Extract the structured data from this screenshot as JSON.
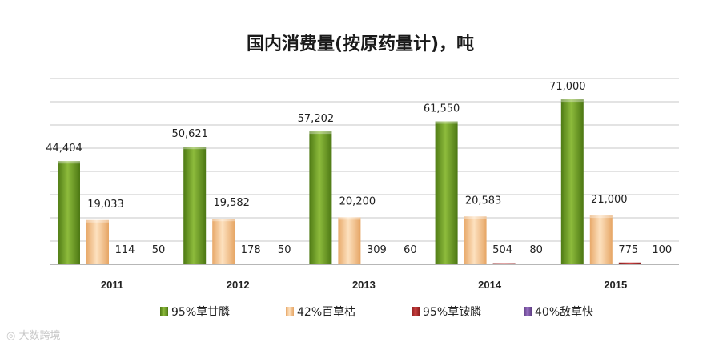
{
  "chart_data": {
    "type": "bar",
    "title": "国内消费量(按原药量计)，吨",
    "categories": [
      "2011",
      "2012",
      "2013",
      "2014",
      "2015"
    ],
    "series": [
      {
        "name": "95%草甘膦",
        "values": [
          44404,
          50621,
          57202,
          61550,
          71000
        ],
        "labels": [
          "44,404",
          "50,621",
          "57,202",
          "61,550",
          "71,000"
        ],
        "color": "#5f8f1f"
      },
      {
        "name": "42%百草枯",
        "values": [
          19033,
          19582,
          20200,
          20583,
          21000
        ],
        "labels": [
          "19,033",
          "19,582",
          "20,200",
          "20,583",
          "21,000"
        ],
        "color": "#f3c493"
      },
      {
        "name": "95%草铵膦",
        "values": [
          114,
          178,
          309,
          504,
          775
        ],
        "labels": [
          "114",
          "178",
          "309",
          "504",
          "775"
        ],
        "color": "#a52a2a"
      },
      {
        "name": "40%敌草快",
        "values": [
          50,
          50,
          60,
          80,
          100
        ],
        "labels": [
          "50",
          "50",
          "60",
          "80",
          "100"
        ],
        "color": "#7a4fa0"
      }
    ],
    "ylim": [
      0,
      80000
    ],
    "grid": true,
    "legend": "bottom"
  },
  "watermark": "大数跨境"
}
